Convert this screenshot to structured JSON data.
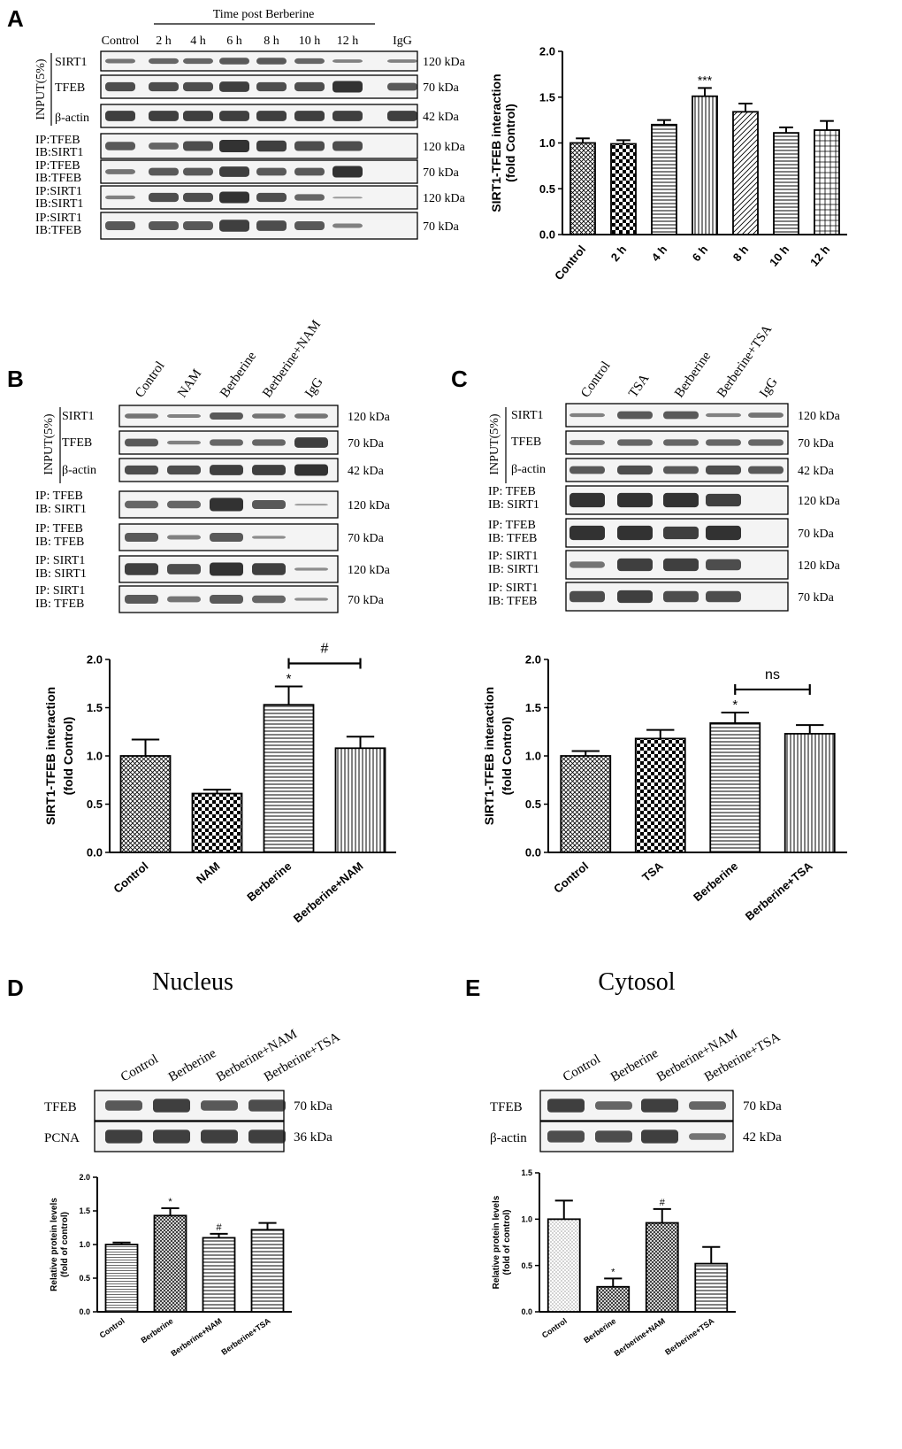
{
  "panel_letters": [
    "A",
    "B",
    "C",
    "D",
    "E"
  ],
  "panelA": {
    "header": "Time post Berberine",
    "lanes": [
      "Control",
      "2 h",
      "4 h",
      "6 h",
      "8 h",
      "10 h",
      "12 h",
      "IgG"
    ],
    "input_bracket": "INPUT(5%)",
    "rows": [
      {
        "label": "SIRT1",
        "kda": "120 kDa"
      },
      {
        "label": "TFEB",
        "kda": "70 kDa"
      },
      {
        "label": "β-actin",
        "kda": "42 kDa"
      },
      {
        "label": "IP:TFEB\nIB:SIRT1",
        "kda": "120 kDa"
      },
      {
        "label": "IP:TFEB\nIB:TFEB",
        "kda": "70 kDa"
      },
      {
        "label": "IP:SIRT1\nIB:SIRT1",
        "kda": "120 kDa"
      },
      {
        "label": "IP:SIRT1\nIB:TFEB",
        "kda": "70 kDa"
      }
    ]
  },
  "panelB": {
    "lanes": [
      "Control",
      "NAM",
      "Berberine",
      "Berberine+NAM",
      "IgG"
    ],
    "input_bracket": "INPUT(5%)",
    "rows": [
      {
        "label": "SIRT1",
        "kda": "120 kDa"
      },
      {
        "label": "TFEB",
        "kda": "70 kDa"
      },
      {
        "label": "β-actin",
        "kda": "42 kDa"
      },
      {
        "label": "IP: TFEB\nIB: SIRT1",
        "kda": "120 kDa"
      },
      {
        "label": "IP: TFEB\nIB: TFEB",
        "kda": "70 kDa"
      },
      {
        "label": "IP: SIRT1\nIB: SIRT1",
        "kda": "120 kDa"
      },
      {
        "label": "IP: SIRT1\nIB: TFEB",
        "kda": "70 kDa"
      }
    ]
  },
  "panelC": {
    "lanes": [
      "Control",
      "TSA",
      "Berberine",
      "Berberine+TSA",
      "IgG"
    ],
    "input_bracket": "INPUT(5%)",
    "rows": [
      {
        "label": "SIRT1",
        "kda": "120 kDa"
      },
      {
        "label": "TFEB",
        "kda": "70 kDa"
      },
      {
        "label": "β-actin",
        "kda": "42 kDa"
      },
      {
        "label": "IP: TFEB\nIB: SIRT1",
        "kda": "120 kDa"
      },
      {
        "label": "IP: TFEB\nIB: TFEB",
        "kda": "70 kDa"
      },
      {
        "label": "IP: SIRT1\nIB: SIRT1",
        "kda": "120 kDa"
      },
      {
        "label": "IP: SIRT1\nIB: TFEB",
        "kda": "70 kDa"
      }
    ]
  },
  "panelD": {
    "title": "Nucleus",
    "lanes": [
      "Control",
      "Berberine",
      "Berberine+NAM",
      "Berberine+TSA"
    ],
    "rows": [
      {
        "label": "TFEB",
        "kda": "70 kDa"
      },
      {
        "label": "PCNA",
        "kda": "36 kDa"
      }
    ]
  },
  "panelE": {
    "title": "Cytosol",
    "lanes": [
      "Control",
      "Berberine",
      "Berberine+NAM",
      "Berberine+TSA"
    ],
    "rows": [
      {
        "label": "TFEB",
        "kda": "70 kDa"
      },
      {
        "label": "β-actin",
        "kda": "42 kDa"
      }
    ]
  },
  "chart_data": [
    {
      "panel": "A",
      "type": "bar",
      "ylabel": [
        "SIRT1-TFEB interaction",
        "(fold Control)"
      ],
      "categories": [
        "Control",
        "2 h",
        "4 h",
        "6 h",
        "8 h",
        "10 h",
        "12 h"
      ],
      "values": [
        1.0,
        0.99,
        1.2,
        1.51,
        1.34,
        1.11,
        1.14
      ],
      "errors": [
        0.05,
        0.04,
        0.05,
        0.09,
        0.09,
        0.06,
        0.1
      ],
      "annotations": [
        "",
        "",
        "",
        "***",
        "",
        "",
        ""
      ],
      "ylim": [
        0,
        2.0
      ],
      "yticks": [
        "0.0",
        "0.5",
        "1.0",
        "1.5",
        "2.0"
      ]
    },
    {
      "panel": "B",
      "type": "bar",
      "ylabel": [
        "SIRT1-TFEB interaction",
        "(fold Control)"
      ],
      "categories": [
        "Control",
        "NAM",
        "Berberine",
        "Berberine+NAM"
      ],
      "values": [
        1.0,
        0.61,
        1.53,
        1.08
      ],
      "errors": [
        0.17,
        0.04,
        0.19,
        0.12
      ],
      "annotations": [
        "",
        "",
        "*",
        ""
      ],
      "bracket": {
        "from": 2,
        "to": 3,
        "label": "#"
      },
      "ylim": [
        0,
        2.0
      ],
      "yticks": [
        "0.0",
        "0.5",
        "1.0",
        "1.5",
        "2.0"
      ]
    },
    {
      "panel": "C",
      "type": "bar",
      "ylabel": [
        "SIRT1-TFEB interaction",
        "(fold Control)"
      ],
      "categories": [
        "Control",
        "TSA",
        "Berberine",
        "Berberine+TSA"
      ],
      "values": [
        1.0,
        1.18,
        1.34,
        1.23
      ],
      "errors": [
        0.05,
        0.09,
        0.11,
        0.09
      ],
      "annotations": [
        "",
        "",
        "*",
        ""
      ],
      "bracket": {
        "from": 2,
        "to": 3,
        "label": "ns"
      },
      "ylim": [
        0,
        2.0
      ],
      "yticks": [
        "0.0",
        "0.5",
        "1.0",
        "1.5",
        "2.0"
      ]
    },
    {
      "panel": "D",
      "type": "bar",
      "ylabel": [
        "Relative protein levels",
        "(fold of control)"
      ],
      "categories": [
        "Control",
        "Berberine",
        "Berberine+NAM",
        "Berberine+TSA"
      ],
      "values": [
        1.0,
        1.43,
        1.1,
        1.22
      ],
      "errors": [
        0.03,
        0.11,
        0.06,
        0.1
      ],
      "annotations": [
        "",
        "*",
        "#",
        ""
      ],
      "ylim": [
        0,
        2.0
      ],
      "yticks": [
        "0.0",
        "0.5",
        "1.0",
        "1.5",
        "2.0"
      ]
    },
    {
      "panel": "E",
      "type": "bar",
      "ylabel": [
        "Relative protein levels",
        "(fold of control)"
      ],
      "categories": [
        "Control",
        "Berberine",
        "Berberine+NAM",
        "Berberine+TSA"
      ],
      "values": [
        1.0,
        0.27,
        0.96,
        0.52
      ],
      "errors": [
        0.2,
        0.09,
        0.15,
        0.18
      ],
      "annotations": [
        "",
        "*",
        "#",
        ""
      ],
      "ylim": [
        0,
        1.5
      ],
      "yticks": [
        "0.0",
        "0.5",
        "1.0",
        "1.5"
      ]
    }
  ]
}
